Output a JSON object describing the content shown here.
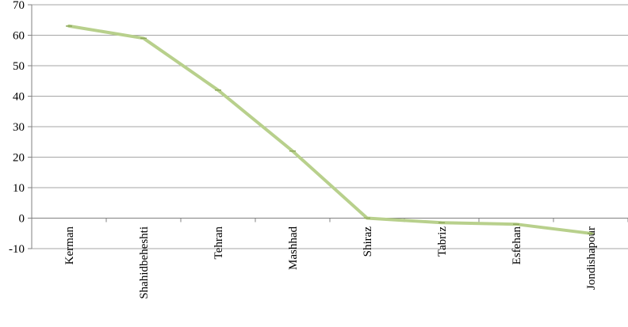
{
  "chart_data": {
    "type": "line",
    "categories": [
      "Kerman",
      "Shahidbeheshti",
      "Tehran",
      "Mashhad",
      "Shiraz",
      "Tabriz",
      "Esfehan",
      "Jondishapour"
    ],
    "series": [
      {
        "values": [
          63,
          59,
          42,
          22,
          0,
          -1.5,
          -2,
          -5
        ]
      }
    ],
    "y_ticks": [
      "-10",
      "0",
      "10",
      "20",
      "30",
      "40",
      "50",
      "60",
      "70"
    ],
    "ylim": [
      -10,
      70
    ],
    "grid": true,
    "legend": "none",
    "colors": {
      "series": "#b8d08c",
      "grid": "#a6a6a6",
      "axis": "#808080"
    }
  }
}
